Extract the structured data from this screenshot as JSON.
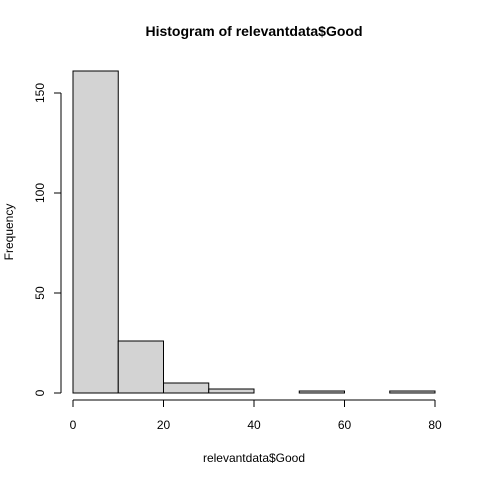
{
  "chart_data": {
    "type": "bar",
    "title": "Histogram of relevantdata$Good",
    "xlabel": "relevantdata$Good",
    "ylabel": "Frequency",
    "bins": [
      {
        "start": 0,
        "end": 10,
        "count": 161
      },
      {
        "start": 10,
        "end": 20,
        "count": 26
      },
      {
        "start": 20,
        "end": 30,
        "count": 5
      },
      {
        "start": 30,
        "end": 40,
        "count": 2
      },
      {
        "start": 40,
        "end": 50,
        "count": 0
      },
      {
        "start": 50,
        "end": 60,
        "count": 1
      },
      {
        "start": 60,
        "end": 70,
        "count": 0
      },
      {
        "start": 70,
        "end": 80,
        "count": 1
      }
    ],
    "xlim": [
      0,
      80
    ],
    "ylim": [
      0,
      161
    ],
    "x_ticks": [
      "0",
      "20",
      "40",
      "60",
      "80"
    ],
    "y_ticks": [
      "0",
      "50",
      "100",
      "150"
    ],
    "bar_color": "#d3d3d3",
    "grid": false,
    "legend": "none"
  }
}
